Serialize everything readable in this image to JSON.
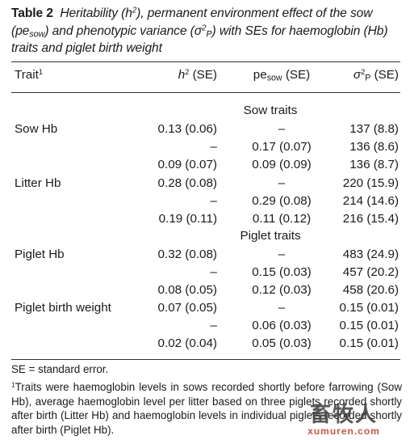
{
  "caption": {
    "label": "Table 2",
    "title_parts": [
      "Heritability (h",
      "2",
      "), permanent environment effect of the sow (pe",
      "sow",
      ") and phenotypic variance (σ",
      "2",
      "P",
      ") with SEs for haemoglobin (Hb) traits and piglet birth weight"
    ]
  },
  "header": {
    "trait": "Trait",
    "trait_sup": "1",
    "h2": "h",
    "h2_sup": "2",
    "h2_se": " (SE)",
    "pe": "pe",
    "pe_sub": "sow",
    "pe_se": " (SE)",
    "sigma": "σ",
    "sigma_sup": "2",
    "sigma_sub": "P",
    "sigma_se": " (SE)"
  },
  "sections": [
    "Sow traits",
    "Piglet traits"
  ],
  "rows": [
    {
      "trait": "Sow Hb",
      "h2": "0.13 (0.06)",
      "pe": "–",
      "sigma": "137 (8.8)"
    },
    {
      "trait": "",
      "h2": "–",
      "pe": "0.17 (0.07)",
      "sigma": "136 (8.6)"
    },
    {
      "trait": "",
      "h2": "0.09 (0.07)",
      "pe": "0.09 (0.09)",
      "sigma": "136 (8.7)"
    },
    {
      "trait": "Litter Hb",
      "h2": "0.28 (0.08)",
      "pe": "–",
      "sigma": "220 (15.9)"
    },
    {
      "trait": "",
      "h2": "–",
      "pe": "0.29 (0.08)",
      "sigma": "214 (14.6)"
    },
    {
      "trait": "",
      "h2": "0.19 (0.11)",
      "pe": "0.11 (0.12)",
      "sigma": "216 (15.4)"
    },
    {
      "trait": "Piglet Hb",
      "h2": "0.32 (0.08)",
      "pe": "–",
      "sigma": "483 (24.9)"
    },
    {
      "trait": "",
      "h2": "–",
      "pe": "0.15 (0.03)",
      "sigma": "457 (20.2)"
    },
    {
      "trait": "",
      "h2": "0.08 (0.05)",
      "pe": "0.12 (0.03)",
      "sigma": "458 (20.6)"
    },
    {
      "trait": "Piglet birth weight",
      "h2": "0.07 (0.05)",
      "pe": "–",
      "sigma": "0.15 (0.01)"
    },
    {
      "trait": "",
      "h2": "–",
      "pe": "0.06 (0.03)",
      "sigma": "0.15 (0.01)"
    },
    {
      "trait": "",
      "h2": "0.02 (0.04)",
      "pe": "0.05 (0.03)",
      "sigma": "0.15 (0.01)"
    }
  ],
  "footnotes": {
    "se": "SE = standard error.",
    "note1_mark": "1",
    "note1": "Traits were haemoglobin levels in sows recorded shortly before farrowing (Sow Hb), average haemoglobin level per litter based on three piglets recorded shortly after birth (Litter Hb) and haemoglobin levels in individual piglets recorded shortly after birth (Piglet Hb)."
  },
  "watermark": {
    "chinese": "畜牧人",
    "url": "xumuren.com"
  }
}
